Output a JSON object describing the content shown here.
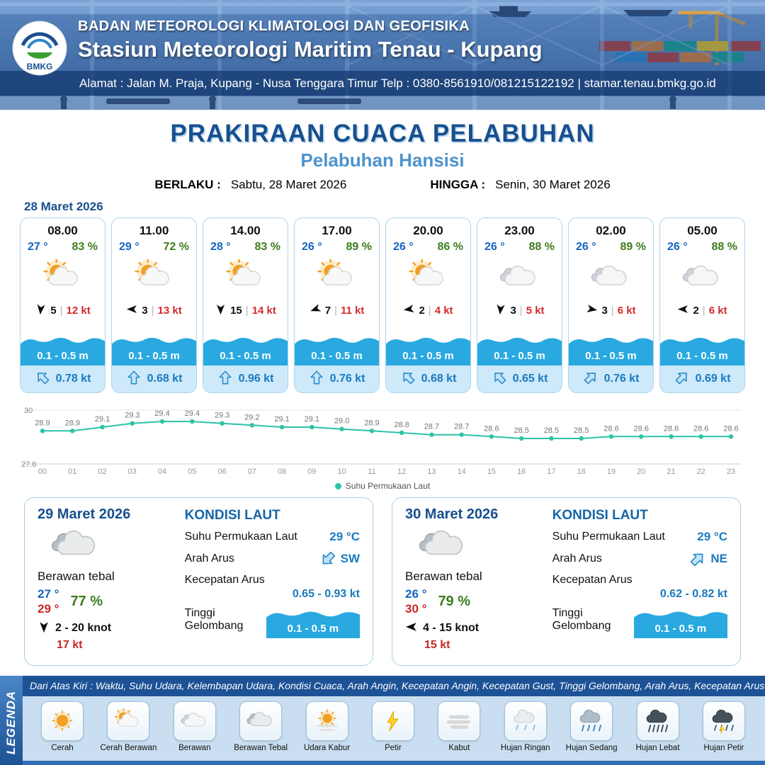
{
  "header": {
    "logo": "BMKG",
    "agency": "BADAN METEOROLOGI KLIMATOLOGI DAN GEOFISIKA",
    "station": "Stasiun Meteorologi Maritim Tenau - Kupang",
    "address": "Alamat : Jalan M. Praja, Kupang - Nusa Tenggara Timur Telp : 0380-8561910/081215122192  | stamar.tenau.bmkg.go.id"
  },
  "title": {
    "main": "PRAKIRAAN CUACA PELABUHAN",
    "port": "Pelabuhan Hansisi",
    "valid_from_label": "BERLAKU :",
    "valid_from": "Sabtu, 28 Maret 2026",
    "valid_to_label": "HINGGA :",
    "valid_to": "Senin, 30 Maret 2026"
  },
  "forecast_date": "28 Maret 2026",
  "hourly": [
    {
      "time": "08.00",
      "temp": "27 °",
      "humidity": "83 %",
      "icon": "sun-cloud",
      "wind_deg": 185,
      "wind_speed": "5",
      "gust": "12 kt",
      "wave": "0.1 - 0.5 m",
      "current_deg": -45,
      "current": "0.78 kt"
    },
    {
      "time": "11.00",
      "temp": "29 °",
      "humidity": "72 %",
      "icon": "sun-cloud",
      "wind_deg": 270,
      "wind_speed": "3",
      "gust": "13 kt",
      "wave": "0.1 - 0.5 m",
      "current_deg": 0,
      "current": "0.68 kt"
    },
    {
      "time": "14.00",
      "temp": "28 °",
      "humidity": "83 %",
      "icon": "sun-cloud",
      "wind_deg": 180,
      "wind_speed": "15",
      "gust": "14 kt",
      "wave": "0.1 - 0.5 m",
      "current_deg": 0,
      "current": "0.96 kt"
    },
    {
      "time": "17.00",
      "temp": "26 °",
      "humidity": "89 %",
      "icon": "sun-cloud",
      "wind_deg": 250,
      "wind_speed": "7",
      "gust": "11 kt",
      "wave": "0.1 - 0.5 m",
      "current_deg": 0,
      "current": "0.76 kt"
    },
    {
      "time": "20.00",
      "temp": "26 °",
      "humidity": "86 %",
      "icon": "sun-cloud",
      "wind_deg": 262,
      "wind_speed": "2",
      "gust": "4 kt",
      "wave": "0.1 - 0.5 m",
      "current_deg": -45,
      "current": "0.68 kt"
    },
    {
      "time": "23.00",
      "temp": "26 °",
      "humidity": "88 %",
      "icon": "cloud",
      "wind_deg": 185,
      "wind_speed": "3",
      "gust": "5 kt",
      "wave": "0.1 - 0.5 m",
      "current_deg": -45,
      "current": "0.65 kt"
    },
    {
      "time": "02.00",
      "temp": "26 °",
      "humidity": "89 %",
      "icon": "cloud",
      "wind_deg": 100,
      "wind_speed": "3",
      "gust": "6 kt",
      "wave": "0.1 - 0.5 m",
      "current_deg": 45,
      "current": "0.76 kt"
    },
    {
      "time": "05.00",
      "temp": "26 °",
      "humidity": "88 %",
      "icon": "cloud",
      "wind_deg": 270,
      "wind_speed": "2",
      "gust": "6 kt",
      "wave": "0.1 - 0.5 m",
      "current_deg": 45,
      "current": "0.69 kt"
    }
  ],
  "chart_data": {
    "type": "line",
    "series_name": "Suhu Permukaan Laut",
    "x": [
      "00",
      "01",
      "02",
      "03",
      "04",
      "05",
      "06",
      "07",
      "08",
      "09",
      "10",
      "11",
      "12",
      "13",
      "14",
      "15",
      "16",
      "17",
      "18",
      "19",
      "20",
      "21",
      "22",
      "23"
    ],
    "values": [
      28.9,
      28.9,
      29.1,
      29.3,
      29.4,
      29.4,
      29.3,
      29.2,
      29.1,
      29.1,
      29.0,
      28.9,
      28.8,
      28.7,
      28.7,
      28.6,
      28.5,
      28.5,
      28.5,
      28.6,
      28.6,
      28.6,
      28.6,
      28.6
    ],
    "ylim": [
      27.6,
      30
    ],
    "yticks": [
      "30",
      "27.6"
    ],
    "line_color": "#2cc3a9",
    "legend_label": "Suhu Permukaan Laut",
    "legend_position": "bottom-center",
    "grid": false
  },
  "sea_labels": {
    "heading": "KONDISI LAUT",
    "sst": "Suhu Permukaan Laut",
    "current_dir": "Arah Arus",
    "current_speed": "Kecepatan Arus",
    "wave_height": "Tinggi Gelombang"
  },
  "daily": [
    {
      "date": "29 Maret 2026",
      "icon": "cloud-thick",
      "condition": "Berawan tebal",
      "temp_min": "27 °",
      "temp_max": "29 °",
      "humidity": "77 %",
      "wind_deg": 180,
      "wind_range": "2  - 20 knot",
      "gust": "17 kt",
      "sst": "29 °C",
      "current_dir": "SW",
      "current_dir_deg": 225,
      "current_speed": "0.65 - 0.93 kt",
      "wave": "0.1 - 0.5 m"
    },
    {
      "date": "30 Maret 2026",
      "icon": "cloud-thick",
      "condition": "Berawan tebal",
      "temp_min": "26 °",
      "temp_max": "30 °",
      "humidity": "79 %",
      "wind_deg": 270,
      "wind_range": "4  - 15 knot",
      "gust": "15 kt",
      "sst": "29 °C",
      "current_dir": "NE",
      "current_dir_deg": 45,
      "current_speed": "0.62 - 0.82 kt",
      "wave": "0.1 - 0.5 m"
    }
  ],
  "legend": {
    "title": "LEGENDA",
    "note": "Dari Atas Kiri : Waktu, Suhu Udara, Kelembapan Udara, Kondisi Cuaca, Arah Angin, Kecepatan Angin, Kecepatan Gust, Tinggi Gelombang, Arah Arus, Kecepatan Arus",
    "items": [
      {
        "label": "Cerah",
        "icon": "sun"
      },
      {
        "label": "Cerah Berawan",
        "icon": "sun-cloud"
      },
      {
        "label": "Berawan",
        "icon": "cloud"
      },
      {
        "label": "Berawan Tebal",
        "icon": "cloud-thick"
      },
      {
        "label": "Udara Kabur",
        "icon": "haze"
      },
      {
        "label": "Petir",
        "icon": "lightning"
      },
      {
        "label": "Kabut",
        "icon": "fog"
      },
      {
        "label": "Hujan Ringan",
        "icon": "rain-light"
      },
      {
        "label": "Hujan Sedang",
        "icon": "rain-medium"
      },
      {
        "label": "Hujan Lebat",
        "icon": "rain-heavy"
      },
      {
        "label": "Hujan Petir",
        "icon": "rain-thunder"
      }
    ]
  },
  "colors": {
    "accent_blue": "#17508f",
    "port_blue": "#4d93cc",
    "temp_blue": "#1565c0",
    "humidity_green": "#3e7d1e",
    "gust_red": "#d22b2b",
    "wave_blue": "#29a9e0",
    "current_blue": "#1a7abf",
    "chart_teal": "#2cc3a9"
  }
}
